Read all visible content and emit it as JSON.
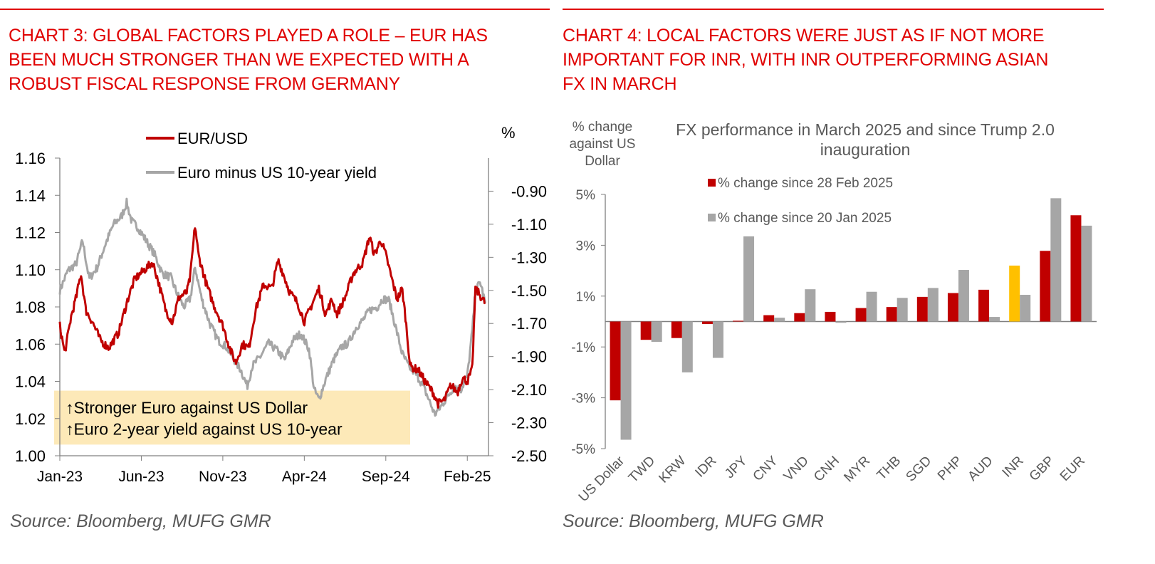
{
  "left_panel": {
    "title": "CHART 3: GLOBAL FACTORS PLAYED A ROLE – EUR HAS BEEN MUCH STRONGER THAN WE EXPECTED WITH A ROBUST FISCAL RESPONSE FROM GERMANY",
    "title_lines": [
      "CHART 3: GLOBAL FACTORS PLAYED A ROLE – EUR HAS",
      "BEEN MUCH STRONGER THAN WE EXPECTED WITH A",
      "ROBUST FISCAL RESPONSE FROM GERMANY"
    ],
    "source": "Source: Bloomberg, MUFG GMR"
  },
  "right_panel": {
    "title": "CHART 4: LOCAL FACTORS WERE JUST AS IF NOT MORE IMPORTANT FOR INR, WITH INR OUTPERFORMING ASIAN FX IN MARCH",
    "title_lines": [
      "CHART 4: LOCAL FACTORS WERE JUST AS IF NOT MORE",
      "IMPORTANT FOR INR, WITH INR OUTPERFORMING ASIAN",
      "FX IN MARCH"
    ],
    "source": "Source: Bloomberg, MUFG GMR"
  },
  "colors": {
    "title_red": "#e00000",
    "series_red": "#c00000",
    "series_gray": "#a6a6a6",
    "highlight_yellow": "#ffc000",
    "annotation_fill": "#fde9b8"
  },
  "chart_data": [
    {
      "type": "line",
      "title": "",
      "xlabel": "",
      "ylabel_left": "",
      "ylabel_right": "%",
      "x_tick_labels": [
        "Jan-23",
        "Jun-23",
        "Nov-23",
        "Apr-24",
        "Sep-24",
        "Feb-25"
      ],
      "x_range": [
        "Jan-23",
        "Mar-25"
      ],
      "y_left": {
        "range": [
          1.0,
          1.16
        ],
        "ticks": [
          "1.00",
          "1.02",
          "1.04",
          "1.06",
          "1.08",
          "1.10",
          "1.12",
          "1.14",
          "1.16"
        ]
      },
      "y_right": {
        "range": [
          -2.5,
          -0.7
        ],
        "ticks": [
          "-0.90",
          "-1.10",
          "-1.30",
          "-1.50",
          "-1.70",
          "-1.90",
          "-2.10",
          "-2.30",
          "-2.50"
        ]
      },
      "legend": {
        "placement": "top-center",
        "entries": [
          "EUR/USD",
          "Euro minus US 10-year yield"
        ]
      },
      "annotation_lines": [
        "↑Stronger Euro against US Dollar",
        "↑Euro 2-year yield against US 10-year"
      ],
      "anchors_note": "Anchor values are approximate visual estimates read from the chart; month index 0 = Jan-23. Intermediate daily points are not recoverable from the image.",
      "series": [
        {
          "name": "EUR/USD",
          "axis": "left",
          "color": "#c00000",
          "anchors_approx": [
            [
              0,
              1.07
            ],
            [
              0.3,
              1.055
            ],
            [
              0.7,
              1.075
            ],
            [
              1.0,
              1.085
            ],
            [
              1.3,
              1.098
            ],
            [
              1.6,
              1.078
            ],
            [
              2.0,
              1.072
            ],
            [
              2.5,
              1.062
            ],
            [
              3.0,
              1.058
            ],
            [
              3.6,
              1.066
            ],
            [
              4.2,
              1.085
            ],
            [
              4.6,
              1.095
            ],
            [
              5.2,
              1.1
            ],
            [
              5.7,
              1.104
            ],
            [
              6.0,
              1.095
            ],
            [
              6.5,
              1.078
            ],
            [
              6.9,
              1.072
            ],
            [
              7.3,
              1.085
            ],
            [
              7.8,
              1.088
            ],
            [
              8.0,
              1.096
            ],
            [
              8.3,
              1.124
            ],
            [
              8.5,
              1.108
            ],
            [
              9.0,
              1.092
            ],
            [
              9.4,
              1.082
            ],
            [
              10.0,
              1.07
            ],
            [
              10.5,
              1.056
            ],
            [
              10.8,
              1.05
            ],
            [
              11.2,
              1.06
            ],
            [
              11.6,
              1.058
            ],
            [
              12.0,
              1.078
            ],
            [
              12.5,
              1.092
            ],
            [
              13.0,
              1.09
            ],
            [
              13.4,
              1.105
            ],
            [
              13.7,
              1.098
            ],
            [
              14.1,
              1.088
            ],
            [
              14.6,
              1.082
            ],
            [
              15.0,
              1.072
            ],
            [
              15.4,
              1.08
            ],
            [
              15.9,
              1.09
            ],
            [
              16.3,
              1.076
            ],
            [
              16.7,
              1.084
            ],
            [
              17.0,
              1.076
            ],
            [
              17.5,
              1.085
            ],
            [
              18.0,
              1.098
            ],
            [
              18.6,
              1.104
            ],
            [
              19.0,
              1.118
            ],
            [
              19.3,
              1.108
            ],
            [
              19.7,
              1.116
            ],
            [
              20.0,
              1.108
            ],
            [
              20.4,
              1.094
            ],
            [
              20.7,
              1.084
            ],
            [
              21.0,
              1.09
            ],
            [
              21.2,
              1.075
            ],
            [
              21.5,
              1.048
            ],
            [
              22.0,
              1.046
            ],
            [
              22.4,
              1.04
            ],
            [
              22.9,
              1.034
            ],
            [
              23.2,
              1.028
            ],
            [
              23.6,
              1.03
            ],
            [
              24.0,
              1.038
            ],
            [
              24.4,
              1.034
            ],
            [
              24.7,
              1.042
            ],
            [
              25.0,
              1.04
            ],
            [
              25.3,
              1.046
            ],
            [
              25.5,
              1.09
            ],
            [
              25.8,
              1.086
            ],
            [
              26.1,
              1.082
            ]
          ]
        },
        {
          "name": "Euro minus US 10-year yield",
          "axis": "right",
          "color": "#a6a6a6",
          "anchors_approx": [
            [
              0,
              -1.5
            ],
            [
              0.5,
              -1.38
            ],
            [
              1.0,
              -1.34
            ],
            [
              1.4,
              -1.2
            ],
            [
              1.8,
              -1.43
            ],
            [
              2.3,
              -1.36
            ],
            [
              2.8,
              -1.22
            ],
            [
              3.3,
              -1.1
            ],
            [
              3.8,
              -1.05
            ],
            [
              4.1,
              -0.97
            ],
            [
              4.4,
              -1.08
            ],
            [
              4.8,
              -1.12
            ],
            [
              5.3,
              -1.2
            ],
            [
              5.8,
              -1.28
            ],
            [
              6.3,
              -1.4
            ],
            [
              6.8,
              -1.42
            ],
            [
              7.2,
              -1.52
            ],
            [
              7.6,
              -1.6
            ],
            [
              8.0,
              -1.55
            ],
            [
              8.3,
              -1.36
            ],
            [
              8.7,
              -1.55
            ],
            [
              9.2,
              -1.7
            ],
            [
              9.7,
              -1.8
            ],
            [
              10.2,
              -1.84
            ],
            [
              10.7,
              -1.92
            ],
            [
              11.1,
              -1.98
            ],
            [
              11.5,
              -2.08
            ],
            [
              11.8,
              -1.96
            ],
            [
              12.3,
              -1.9
            ],
            [
              12.8,
              -1.82
            ],
            [
              13.3,
              -1.86
            ],
            [
              13.8,
              -1.92
            ],
            [
              14.3,
              -1.8
            ],
            [
              14.8,
              -1.76
            ],
            [
              15.3,
              -1.86
            ],
            [
              15.6,
              -2.1
            ],
            [
              15.9,
              -2.16
            ],
            [
              16.3,
              -2.04
            ],
            [
              16.8,
              -1.92
            ],
            [
              17.3,
              -1.84
            ],
            [
              17.7,
              -1.82
            ],
            [
              18.2,
              -1.72
            ],
            [
              18.6,
              -1.68
            ],
            [
              19.0,
              -1.62
            ],
            [
              19.5,
              -1.6
            ],
            [
              19.8,
              -1.55
            ],
            [
              20.2,
              -1.56
            ],
            [
              20.6,
              -1.72
            ],
            [
              21.0,
              -1.88
            ],
            [
              21.4,
              -1.96
            ],
            [
              21.8,
              -2.0
            ],
            [
              22.2,
              -2.06
            ],
            [
              22.6,
              -2.15
            ],
            [
              23.0,
              -2.25
            ],
            [
              23.4,
              -2.2
            ],
            [
              23.8,
              -2.14
            ],
            [
              24.2,
              -2.08
            ],
            [
              24.6,
              -2.1
            ],
            [
              25.0,
              -2.02
            ],
            [
              25.3,
              -1.75
            ],
            [
              25.5,
              -1.5
            ],
            [
              25.8,
              -1.45
            ],
            [
              26.1,
              -1.58
            ]
          ]
        }
      ]
    },
    {
      "type": "bar",
      "title": "FX performance in March 2025 and since Trump 2.0 inauguration",
      "title_lines": [
        "FX performance in March 2025 and since Trump 2.0",
        "inauguration"
      ],
      "ylabel": "% change against US Dollar",
      "ylabel_lines": [
        "% change",
        "against US",
        "Dollar"
      ],
      "xlabel": "",
      "ylim": [
        -5,
        5
      ],
      "y_ticks": [
        "5%",
        "3%",
        "1%",
        "-1%",
        "-3%",
        "-5%"
      ],
      "legend": {
        "placement": "top-center",
        "entries": [
          "% change since 28 Feb 2025",
          "% change since 20 Jan 2025"
        ]
      },
      "categories": [
        "US Dollar",
        "TWD",
        "KRW",
        "IDR",
        "JPY",
        "CNY",
        "VND",
        "CNH",
        "MYR",
        "THB",
        "SGD",
        "PHP",
        "AUD",
        "INR",
        "GBP",
        "EUR"
      ],
      "highlight_category": "INR",
      "series": [
        {
          "name": "% change since 28 Feb 2025",
          "color": "#c00000",
          "values": [
            -3.1,
            -0.72,
            -0.65,
            -0.1,
            0.03,
            0.25,
            0.33,
            0.38,
            0.53,
            0.57,
            0.97,
            1.12,
            1.25,
            2.2,
            2.78,
            4.18
          ]
        },
        {
          "name": "% change since 20 Jan 2025",
          "color": "#a6a6a6",
          "values": [
            -4.65,
            -0.8,
            -2.0,
            -1.43,
            3.35,
            0.15,
            1.27,
            -0.05,
            1.17,
            0.93,
            1.32,
            2.03,
            0.18,
            1.05,
            4.85,
            3.77
          ]
        }
      ]
    }
  ]
}
